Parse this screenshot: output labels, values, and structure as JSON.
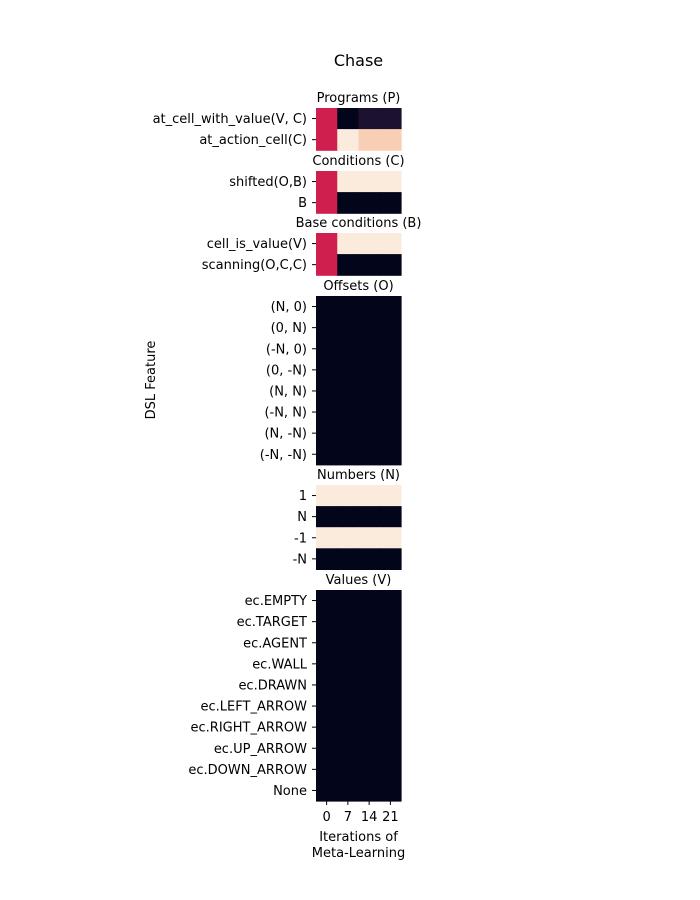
{
  "chart_data": {
    "type": "heatmap",
    "title": "Chase",
    "ylabel": "DSL Feature",
    "xlabel_lines": [
      "Iterations of",
      "Meta-Learning"
    ],
    "x_ticks": [
      "0",
      "7",
      "14",
      "21"
    ],
    "n_columns": 4,
    "colormap": "rocket",
    "colors": {
      "dark": "#03051a",
      "light": "#faebdd",
      "red": "#cf1f4f",
      "peach": "#f8cfb4",
      "dark_purple": "#1d1130"
    },
    "panels": [
      {
        "title": "Programs (P)",
        "rows": [
          {
            "label": "at_cell_with_value(V, C)",
            "cells": [
              "red",
              "dark",
              "dark_purple",
              "dark_purple"
            ]
          },
          {
            "label": "at_action_cell(C)",
            "cells": [
              "red",
              "light",
              "peach",
              "peach"
            ]
          }
        ]
      },
      {
        "title": "Conditions (C)",
        "rows": [
          {
            "label": "shifted(O,B)",
            "cells": [
              "red",
              "light",
              "light",
              "light"
            ]
          },
          {
            "label": "B",
            "cells": [
              "red",
              "dark",
              "dark",
              "dark"
            ]
          }
        ]
      },
      {
        "title": "Base conditions (B)",
        "rows": [
          {
            "label": "cell_is_value(V)",
            "cells": [
              "red",
              "light",
              "light",
              "light"
            ]
          },
          {
            "label": "scanning(O,C,C)",
            "cells": [
              "red",
              "dark",
              "dark",
              "dark"
            ]
          }
        ]
      },
      {
        "title": "Offsets (O)",
        "rows": [
          {
            "label": "(N, 0)",
            "cells": [
              "dark",
              "dark",
              "dark",
              "dark"
            ]
          },
          {
            "label": "(0, N)",
            "cells": [
              "dark",
              "dark",
              "dark",
              "dark"
            ]
          },
          {
            "label": "(-N, 0)",
            "cells": [
              "dark",
              "dark",
              "dark",
              "dark"
            ]
          },
          {
            "label": "(0, -N)",
            "cells": [
              "dark",
              "dark",
              "dark",
              "dark"
            ]
          },
          {
            "label": "(N, N)",
            "cells": [
              "dark",
              "dark",
              "dark",
              "dark"
            ]
          },
          {
            "label": "(-N, N)",
            "cells": [
              "dark",
              "dark",
              "dark",
              "dark"
            ]
          },
          {
            "label": "(N, -N)",
            "cells": [
              "dark",
              "dark",
              "dark",
              "dark"
            ]
          },
          {
            "label": "(-N, -N)",
            "cells": [
              "dark",
              "dark",
              "dark",
              "dark"
            ]
          }
        ]
      },
      {
        "title": "Numbers (N)",
        "rows": [
          {
            "label": "1",
            "cells": [
              "light",
              "light",
              "light",
              "light"
            ]
          },
          {
            "label": "N",
            "cells": [
              "dark",
              "dark",
              "dark",
              "dark"
            ]
          },
          {
            "label": "-1",
            "cells": [
              "light",
              "light",
              "light",
              "light"
            ]
          },
          {
            "label": "-N",
            "cells": [
              "dark",
              "dark",
              "dark",
              "dark"
            ]
          }
        ]
      },
      {
        "title": "Values (V)",
        "rows": [
          {
            "label": "ec.EMPTY",
            "cells": [
              "dark",
              "dark",
              "dark",
              "dark"
            ]
          },
          {
            "label": "ec.TARGET",
            "cells": [
              "dark",
              "dark",
              "dark",
              "dark"
            ]
          },
          {
            "label": "ec.AGENT",
            "cells": [
              "dark",
              "dark",
              "dark",
              "dark"
            ]
          },
          {
            "label": "ec.WALL",
            "cells": [
              "dark",
              "dark",
              "dark",
              "dark"
            ]
          },
          {
            "label": "ec.DRAWN",
            "cells": [
              "dark",
              "dark",
              "dark",
              "dark"
            ]
          },
          {
            "label": "ec.LEFT_ARROW",
            "cells": [
              "dark",
              "dark",
              "dark",
              "dark"
            ]
          },
          {
            "label": "ec.RIGHT_ARROW",
            "cells": [
              "dark",
              "dark",
              "dark",
              "dark"
            ]
          },
          {
            "label": "ec.UP_ARROW",
            "cells": [
              "dark",
              "dark",
              "dark",
              "dark"
            ]
          },
          {
            "label": "ec.DOWN_ARROW",
            "cells": [
              "dark",
              "dark",
              "dark",
              "dark"
            ]
          },
          {
            "label": "None",
            "cells": [
              "dark",
              "dark",
              "dark",
              "dark"
            ]
          }
        ]
      }
    ]
  }
}
